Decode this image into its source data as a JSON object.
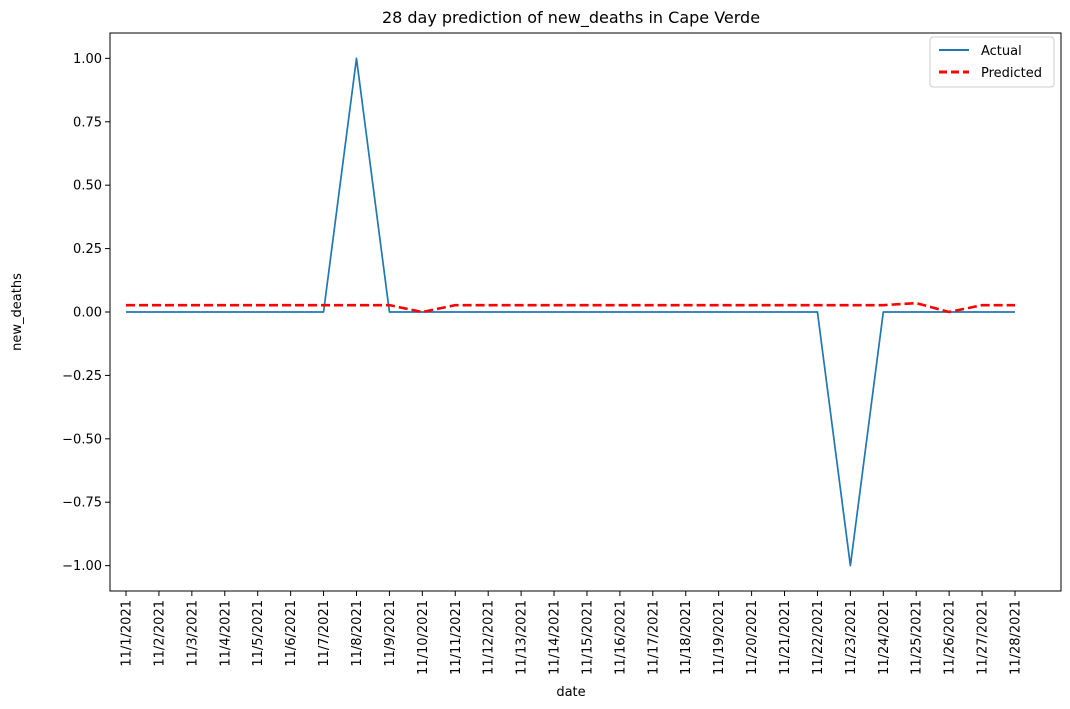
{
  "chart_data": {
    "type": "line",
    "title": "28 day prediction of new_deaths in Cape Verde",
    "xlabel": "date",
    "ylabel": "new_deaths",
    "categories": [
      "11/1/2021",
      "11/2/2021",
      "11/3/2021",
      "11/4/2021",
      "11/5/2021",
      "11/6/2021",
      "11/7/2021",
      "11/8/2021",
      "11/9/2021",
      "11/10/2021",
      "11/11/2021",
      "11/12/2021",
      "11/13/2021",
      "11/14/2021",
      "11/15/2021",
      "11/16/2021",
      "11/17/2021",
      "11/18/2021",
      "11/19/2021",
      "11/20/2021",
      "11/21/2021",
      "11/22/2021",
      "11/23/2021",
      "11/24/2021",
      "11/25/2021",
      "11/26/2021",
      "11/27/2021",
      "11/28/2021"
    ],
    "ylim": [
      -1.1,
      1.1
    ],
    "yticks": [
      "1.00",
      "0.75",
      "0.50",
      "0.25",
      "0.00",
      "−0.25",
      "−0.50",
      "−0.75",
      "−1.00"
    ],
    "ytick_values": [
      1.0,
      0.75,
      0.5,
      0.25,
      0.0,
      -0.25,
      -0.5,
      -0.75,
      -1.0
    ],
    "legend_position": "top-right",
    "grid": false,
    "series": [
      {
        "name": "Actual",
        "color": "#1f77b4",
        "style": "solid",
        "values": [
          0,
          0,
          0,
          0,
          0,
          0,
          0,
          1,
          0,
          0,
          0,
          0,
          0,
          0,
          0,
          0,
          0,
          0,
          0,
          0,
          0,
          0,
          -1,
          0,
          0,
          0,
          0,
          0
        ]
      },
      {
        "name": "Predicted",
        "color": "#ff0000",
        "style": "dashed",
        "values": [
          0.027,
          0.027,
          0.027,
          0.027,
          0.027,
          0.027,
          0.027,
          0.027,
          0.027,
          0.0,
          0.027,
          0.027,
          0.027,
          0.027,
          0.027,
          0.027,
          0.027,
          0.027,
          0.027,
          0.027,
          0.027,
          0.027,
          0.027,
          0.027,
          0.035,
          0.0,
          0.027,
          0.027
        ]
      }
    ]
  }
}
